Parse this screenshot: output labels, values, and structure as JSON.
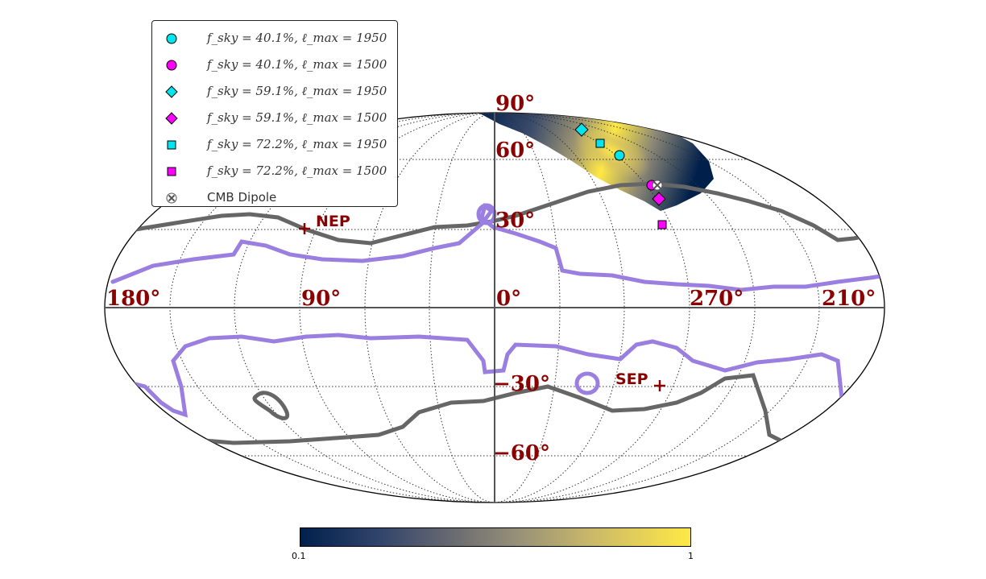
{
  "projection": "mollweide",
  "grid": true,
  "longitude_labels": [
    "180°",
    "90°",
    "0°",
    "270°",
    "210°"
  ],
  "latitude_labels": [
    "90°",
    "60°",
    "30°",
    "−30°",
    "−60°"
  ],
  "pole_labels": {
    "north": "NEP",
    "south": "SEP"
  },
  "legend": {
    "placement": "top-left",
    "entries": [
      {
        "text": "f_sky = 40.1%,  ℓ_max = 1950",
        "marker": "circle",
        "color": "#00e5ee"
      },
      {
        "text": "f_sky = 40.1%,  ℓ_max = 1500",
        "marker": "circle",
        "color": "#ff00ff"
      },
      {
        "text": "f_sky = 59.1%,  ℓ_max = 1950",
        "marker": "diamond",
        "color": "#00e5ee"
      },
      {
        "text": "f_sky = 59.1%,  ℓ_max = 1500",
        "marker": "diamond",
        "color": "#ff00ff"
      },
      {
        "text": "f_sky = 72.2%,  ℓ_max = 1950",
        "marker": "square",
        "color": "#00e5ee"
      },
      {
        "text": "f_sky = 72.2%,  ℓ_max = 1500",
        "marker": "square",
        "color": "#ff00ff"
      },
      {
        "text": "CMB Dipole",
        "marker": "cross",
        "color": "#ffffff"
      }
    ]
  },
  "colorbar": {
    "min_label": "0.1",
    "max_label": "1",
    "colormap": "cividis"
  },
  "colors": {
    "label_red": "#8b0000",
    "grey_curve": "#666666",
    "purple_curve": "#9a7fe0"
  }
}
